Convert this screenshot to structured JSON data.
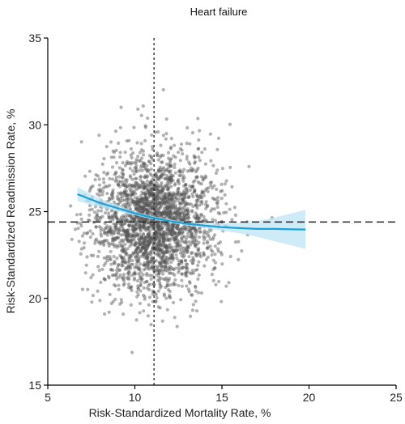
{
  "chart_data": {
    "type": "scatter",
    "title": "Heart failure",
    "xlabel": "Risk-Standardized Mortality Rate, %",
    "ylabel": "Risk-Standardized Readmission Rate, %",
    "xlim": [
      5,
      25
    ],
    "ylim": [
      15,
      35
    ],
    "xticks": [
      "5",
      "10",
      "15",
      "20",
      "25"
    ],
    "yticks": [
      "15",
      "20",
      "25",
      "30",
      "35"
    ],
    "grid": false,
    "point_cloud": {
      "description_of_distribution": "approx. 4000 hospitals",
      "x_mean": 11.1,
      "x_sd": 1.6,
      "x_range": [
        6.3,
        19.8
      ],
      "y_mean": 24.4,
      "y_sd": 2.0,
      "y_range": [
        15.9,
        33.0
      ],
      "count": 2600
    },
    "reference_lines": {
      "vertical_x": 11.1,
      "horizontal_y": 24.4
    },
    "fit_curve": {
      "x": [
        6.7,
        8,
        9,
        10,
        11,
        12,
        13,
        14,
        15,
        16,
        17,
        18,
        19,
        19.8
      ],
      "y": [
        26.0,
        25.5,
        25.2,
        24.9,
        24.65,
        24.45,
        24.3,
        24.2,
        24.1,
        24.05,
        24.0,
        24.0,
        23.98,
        23.97
      ],
      "ci_lower": [
        25.6,
        25.25,
        25.0,
        24.8,
        24.55,
        24.35,
        24.2,
        24.05,
        23.9,
        23.75,
        23.55,
        23.3,
        23.05,
        22.85
      ],
      "ci_upper": [
        26.4,
        25.75,
        25.4,
        25.0,
        24.75,
        24.55,
        24.4,
        24.35,
        24.3,
        24.35,
        24.45,
        24.65,
        24.9,
        25.1
      ]
    },
    "colors": {
      "points": "#555555",
      "fit_line": "#1aa0d8",
      "ci_band": "#bfe4f5",
      "reference_lines": "#222222"
    }
  }
}
